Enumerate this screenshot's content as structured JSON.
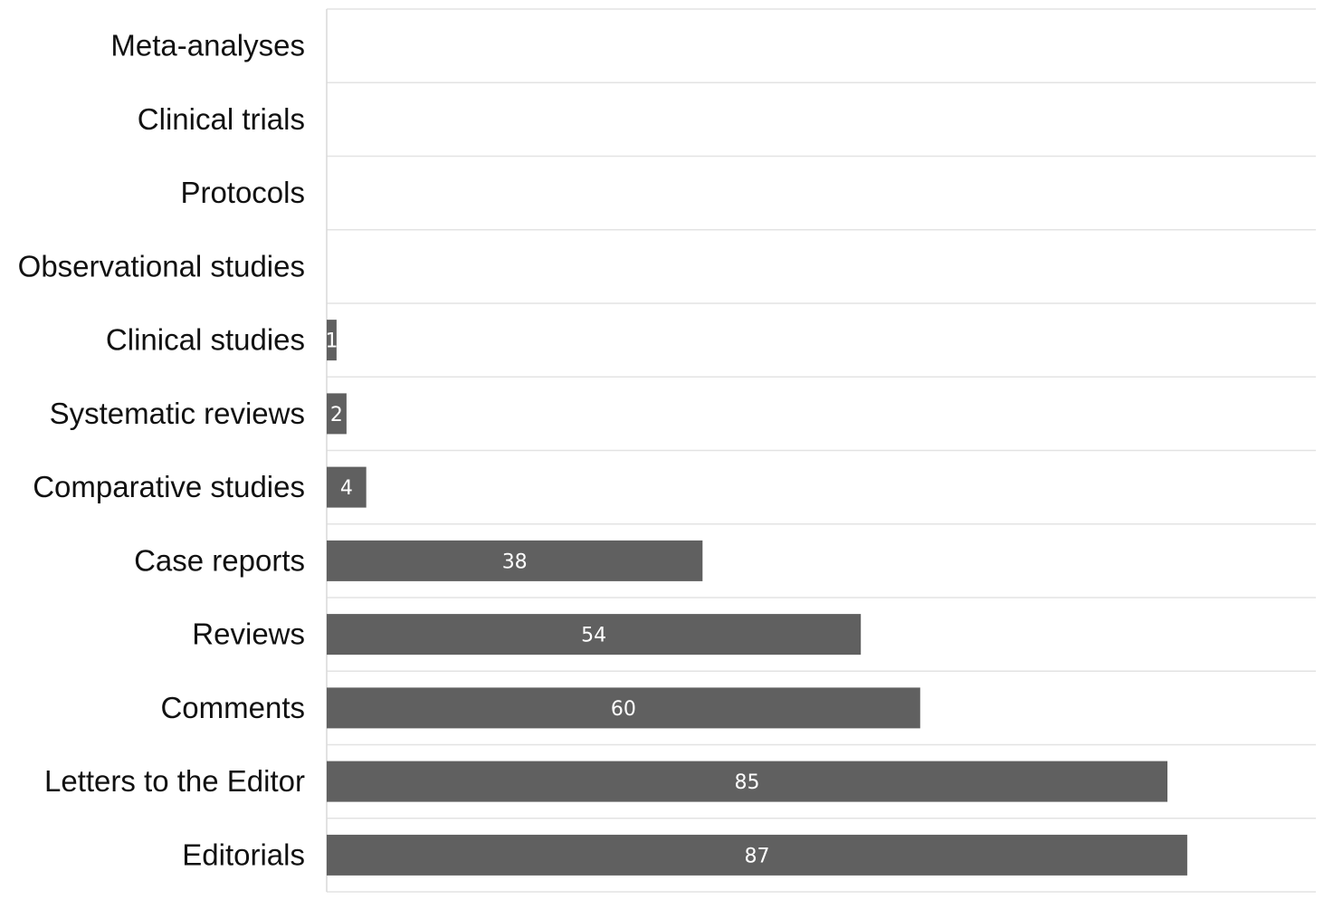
{
  "chart_data": {
    "type": "bar",
    "orientation": "horizontal",
    "title": "",
    "xlabel": "",
    "ylabel": "",
    "categories": [
      "Meta-analyses",
      "Clinical trials",
      "Protocols",
      "Observational studies",
      "Clinical studies",
      "Systematic reviews",
      "Comparative studies",
      "Case reports",
      "Reviews",
      "Comments",
      "Letters to the Editor",
      "Editorials"
    ],
    "values": [
      0,
      0,
      0,
      0,
      1,
      2,
      4,
      38,
      54,
      60,
      85,
      87
    ],
    "data_labels": [
      "",
      "",
      "",
      "",
      "1",
      "2",
      "4",
      "38",
      "54",
      "60",
      "85",
      "87"
    ],
    "xlim": [
      0,
      100
    ],
    "grid": true,
    "legend": "none",
    "colors": {
      "bar": "#606060",
      "grid": "#e3e3e3",
      "label_text": "#111111",
      "value_text": "#ffffff"
    }
  }
}
